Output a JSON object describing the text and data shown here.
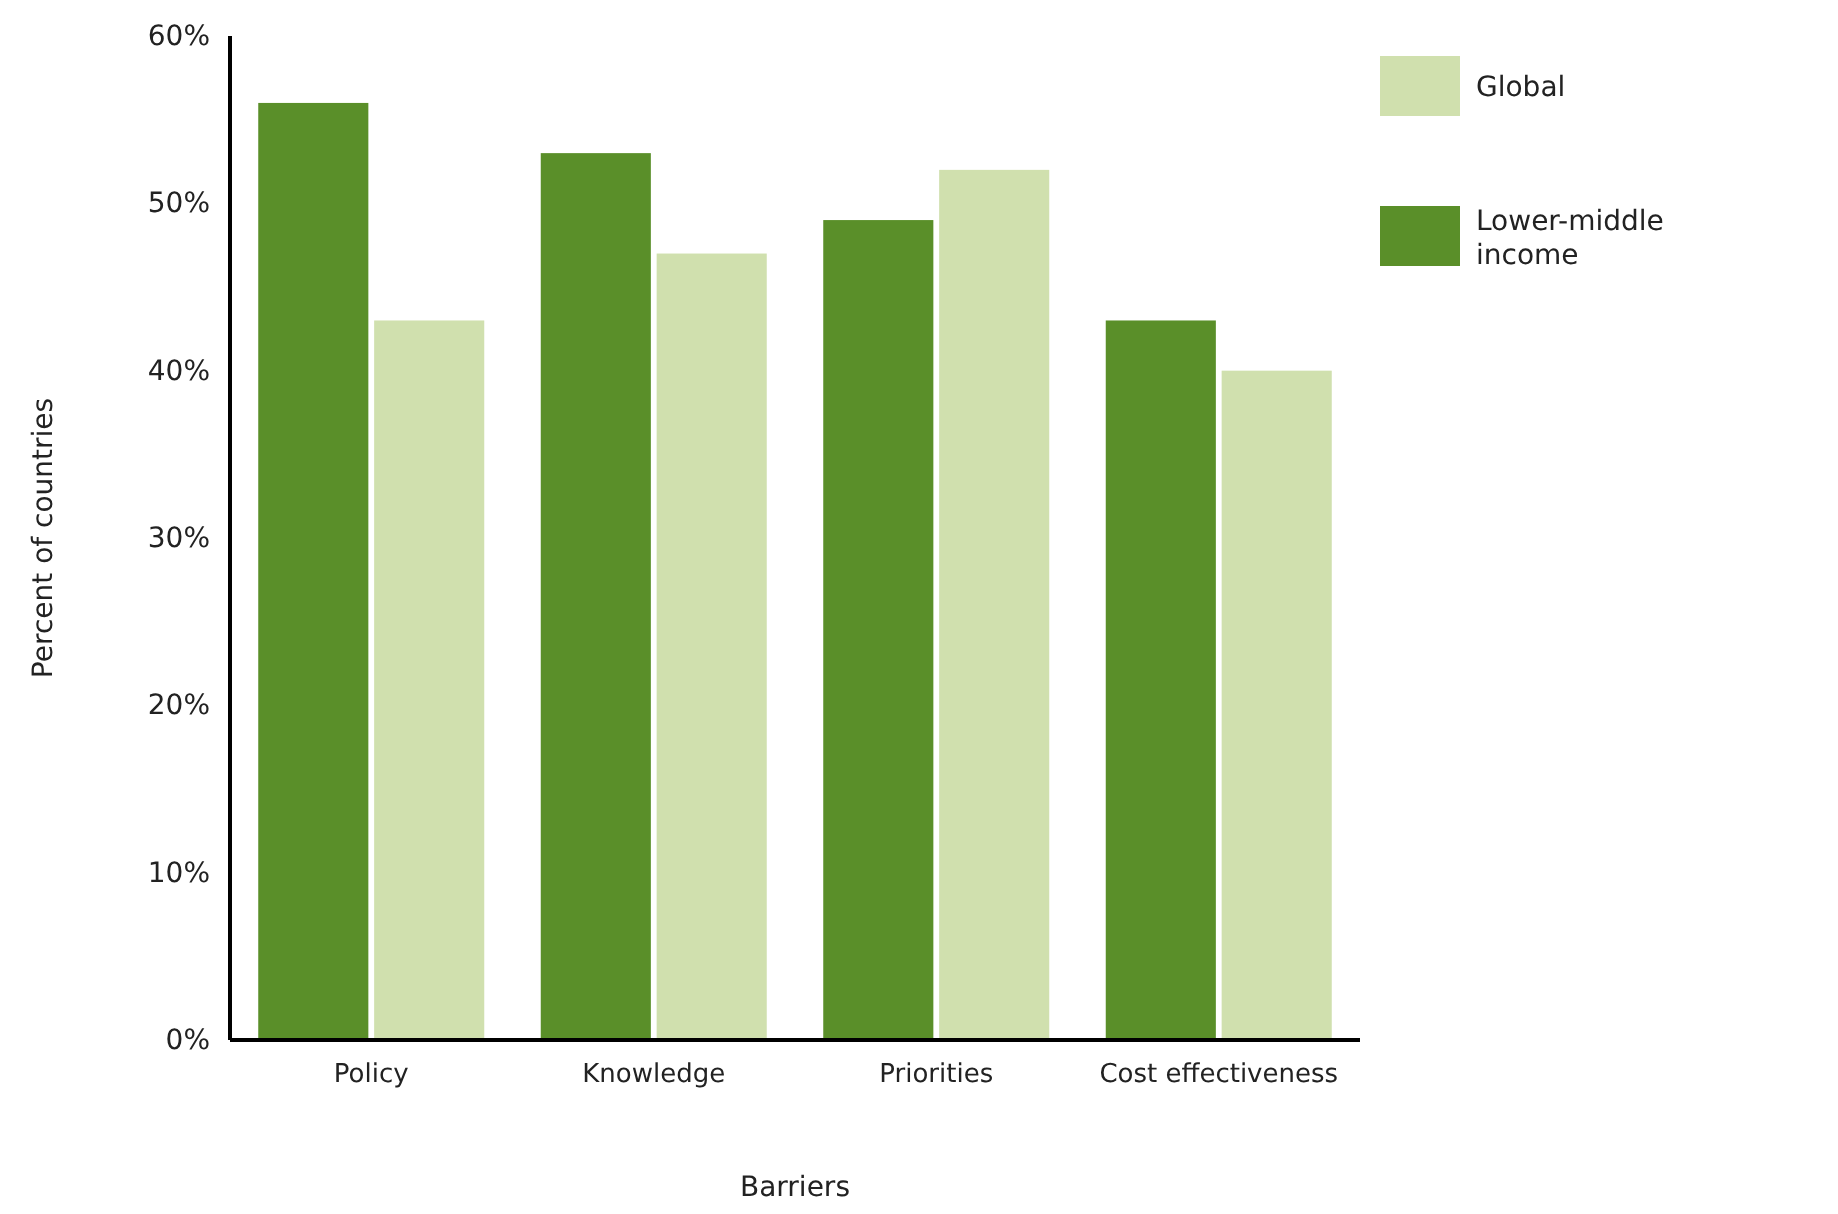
{
  "chart_data": {
    "type": "bar",
    "xlabel": "Barriers",
    "ylabel": "Percent of countries",
    "categories": [
      "Policy",
      "Knowledge",
      "Priorities",
      "Cost effectiveness"
    ],
    "series": [
      {
        "name": "Lower-middle income",
        "color": "#5a8f29",
        "values": [
          56,
          53,
          49,
          43
        ]
      },
      {
        "name": "Global",
        "color": "#d0e0ae",
        "values": [
          43,
          47,
          52,
          40
        ]
      }
    ],
    "ylim": [
      0,
      60
    ],
    "yticks": [
      {
        "value": 0,
        "label": "0%"
      },
      {
        "value": 10,
        "label": "10%"
      },
      {
        "value": 20,
        "label": "20%"
      },
      {
        "value": 30,
        "label": "30%"
      },
      {
        "value": 40,
        "label": "40%"
      },
      {
        "value": 50,
        "label": "50%"
      },
      {
        "value": 60,
        "label": "60%"
      }
    ],
    "grid": false,
    "legend": "top right"
  }
}
